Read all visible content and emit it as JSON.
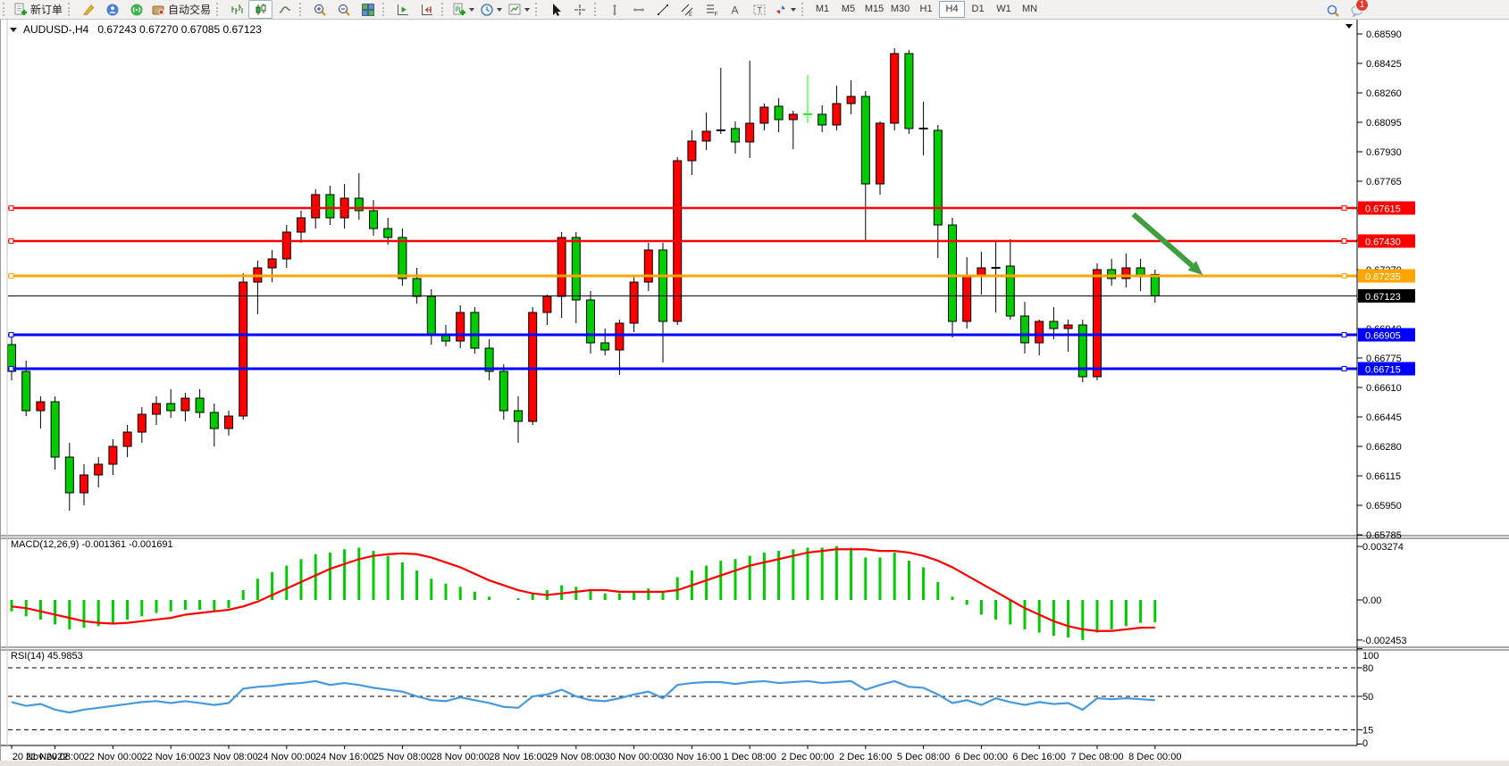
{
  "header": {
    "symbol_title": "AUDUSD-,H4",
    "ohlc": "0.67243 0.67270 0.67085 0.67123"
  },
  "toolbar": {
    "groups": [
      {
        "items": [
          {
            "name": "new-order",
            "icon": "new-order-icon",
            "label": "新订单"
          }
        ]
      },
      {
        "items": [
          {
            "name": "metaeditor",
            "icon": "brush-icon"
          },
          {
            "name": "market",
            "icon": "profile-icon"
          },
          {
            "name": "signals",
            "icon": "signal-icon"
          },
          {
            "name": "auto-trading",
            "icon": "autotrade-icon",
            "label": "自动交易"
          }
        ]
      },
      {
        "items": [
          {
            "name": "bar-chart-mode",
            "icon": "bar-chart-icon"
          },
          {
            "name": "candle-chart-mode",
            "icon": "candle-chart-icon",
            "active": true
          },
          {
            "name": "line-chart-mode",
            "icon": "line-chart-icon"
          }
        ]
      },
      {
        "items": [
          {
            "name": "zoom-in",
            "icon": "zoom-in-icon"
          },
          {
            "name": "zoom-out",
            "icon": "zoom-out-icon"
          },
          {
            "name": "tile-windows",
            "icon": "tile-windows-icon"
          }
        ]
      },
      {
        "items": [
          {
            "name": "auto-scroll",
            "icon": "auto-scroll-icon"
          },
          {
            "name": "chart-shift",
            "icon": "chart-shift-icon"
          }
        ]
      },
      {
        "items": [
          {
            "name": "new-chart",
            "icon": "new-chart-icon",
            "caret": true
          },
          {
            "name": "periods",
            "icon": "clock-icon",
            "caret": true
          },
          {
            "name": "indicators",
            "icon": "template-icon",
            "caret": true
          }
        ]
      },
      {
        "items": [
          {
            "name": "cursor-tool",
            "icon": "cursor-icon"
          },
          {
            "name": "crosshair-tool",
            "icon": "crosshair-icon"
          }
        ]
      },
      {
        "items": [
          {
            "name": "vline-tool",
            "icon": "vline-icon"
          },
          {
            "name": "hline-tool",
            "icon": "hline-icon"
          },
          {
            "name": "trendline-tool",
            "icon": "trendline-icon"
          },
          {
            "name": "channel-tool",
            "icon": "channel-icon"
          },
          {
            "name": "fibo-tool",
            "icon": "fibo-icon"
          },
          {
            "name": "text-tool",
            "icon": "text-icon"
          },
          {
            "name": "label-tool",
            "icon": "label-icon"
          },
          {
            "name": "arrows-tool",
            "icon": "arrows-icon",
            "caret": true
          }
        ]
      }
    ],
    "timeframes": [
      "M1",
      "M5",
      "M15",
      "M30",
      "H1",
      "H4",
      "D1",
      "W1",
      "MN"
    ],
    "active_timeframe": "H4",
    "right": [
      {
        "name": "search",
        "icon": "search-icon"
      },
      {
        "name": "notifications",
        "icon": "chat-icon",
        "badge": "1"
      }
    ]
  },
  "panes": {
    "macd": {
      "label": "MACD(12,26,9)",
      "values": "-0.001361 -0.001691",
      "axis_labels": [
        "0.003274",
        "0.00",
        "-0.002453"
      ]
    },
    "rsi": {
      "label": "RSI(14)",
      "value": "45.9853",
      "axis_labels": [
        "100",
        "80",
        "50",
        "15",
        "0"
      ],
      "dashed_levels": [
        80,
        50,
        15
      ]
    }
  },
  "colors": {
    "candle_up": "#ff0000",
    "candle_down": "#00cc00",
    "doji_lime": "#00ff00",
    "wick": "#000000",
    "macd_hist": "#00cc00",
    "macd_signal": "#ff0000",
    "rsi_line": "#4499e0",
    "line_red": "#ff0000",
    "line_orange": "#ffa500",
    "line_blue": "#0000ff",
    "price_line": "#000000",
    "arrow": "#3f9e3f",
    "axis": "#000000"
  },
  "chart_data": {
    "type": "candlestick-with-indicators",
    "symbol": "AUDUSD-",
    "timeframe": "H4",
    "price_axis_ticks": [
      "0.68590",
      "0.68425",
      "0.68260",
      "0.68095",
      "0.67930",
      "0.67765",
      "0.67600",
      "0.67435",
      "0.67270",
      "0.67105",
      "0.66940",
      "0.66775",
      "0.66610",
      "0.66445",
      "0.66280",
      "0.66115",
      "0.65950",
      "0.65785"
    ],
    "price_axis_top_tick": 0.6859,
    "price_axis_step": 0.00165,
    "main_ylim": [
      0.6578,
      0.6867
    ],
    "hlines": [
      {
        "price": 0.67615,
        "label": "0.67615",
        "color": "line_red"
      },
      {
        "price": 0.6743,
        "label": "0.67430",
        "color": "line_red"
      },
      {
        "price": 0.67235,
        "label": "0.67235",
        "color": "line_orange"
      },
      {
        "price": 0.66905,
        "label": "0.66905",
        "color": "line_blue"
      },
      {
        "price": 0.66715,
        "label": "0.66715",
        "color": "line_blue"
      }
    ],
    "current_price": {
      "price": 0.67123,
      "label": "0.67123"
    },
    "arrow_annotation": {
      "x1_index": 77.5,
      "p1": 0.6758,
      "x2_index": 82.3,
      "p2": 0.6724
    },
    "time_labels": [
      {
        "i": 0,
        "t": "20 Nov 2022"
      },
      {
        "i": 3,
        "t": "21 Nov 08:00"
      },
      {
        "i": 7,
        "t": "22 Nov 00:00"
      },
      {
        "i": 11,
        "t": "22 Nov 16:00"
      },
      {
        "i": 15,
        "t": "23 Nov 08:00"
      },
      {
        "i": 19,
        "t": "24 Nov 00:00"
      },
      {
        "i": 23,
        "t": "24 Nov 16:00"
      },
      {
        "i": 27,
        "t": "25 Nov 08:00"
      },
      {
        "i": 31,
        "t": "28 Nov 00:00"
      },
      {
        "i": 35,
        "t": "28 Nov 16:00"
      },
      {
        "i": 39,
        "t": "29 Nov 08:00"
      },
      {
        "i": 43,
        "t": "30 Nov 00:00"
      },
      {
        "i": 47,
        "t": "30 Nov 16:00"
      },
      {
        "i": 51,
        "t": "1 Dec 08:00"
      },
      {
        "i": 55,
        "t": "2 Dec 00:00"
      },
      {
        "i": 59,
        "t": "2 Dec 16:00"
      },
      {
        "i": 63,
        "t": "5 Dec 08:00"
      },
      {
        "i": 67,
        "t": "6 Dec 00:00"
      },
      {
        "i": 71,
        "t": "6 Dec 16:00"
      },
      {
        "i": 75,
        "t": "7 Dec 08:00"
      },
      {
        "i": 79,
        "t": "8 Dec 00:00"
      }
    ],
    "candles_format": "[open,high,low,close,(doji:'b'=black,'g'=lime)]",
    "candles": [
      [
        0.6685,
        0.669,
        0.6665,
        0.667
      ],
      [
        0.667,
        0.6676,
        0.6645,
        0.6648
      ],
      [
        0.6648,
        0.6656,
        0.6638,
        0.6653
      ],
      [
        0.6653,
        0.6656,
        0.6615,
        0.6622
      ],
      [
        0.6622,
        0.663,
        0.6592,
        0.6602
      ],
      [
        0.6602,
        0.6618,
        0.6595,
        0.6612
      ],
      [
        0.6612,
        0.6622,
        0.6605,
        0.6618
      ],
      [
        0.6618,
        0.6632,
        0.6612,
        0.6628
      ],
      [
        0.6628,
        0.664,
        0.6622,
        0.6636
      ],
      [
        0.6636,
        0.665,
        0.663,
        0.6646
      ],
      [
        0.6646,
        0.6656,
        0.664,
        0.6652
      ],
      [
        0.6652,
        0.666,
        0.6644,
        0.6648
      ],
      [
        0.6648,
        0.6658,
        0.6642,
        0.6655
      ],
      [
        0.6655,
        0.666,
        0.6644,
        0.6647
      ],
      [
        0.6647,
        0.6652,
        0.6628,
        0.6638
      ],
      [
        0.6638,
        0.6648,
        0.6634,
        0.6645
      ],
      [
        0.6645,
        0.6725,
        0.6643,
        0.672
      ],
      [
        0.672,
        0.6732,
        0.6702,
        0.6728
      ],
      [
        0.6728,
        0.6738,
        0.672,
        0.6733
      ],
      [
        0.6733,
        0.6752,
        0.6728,
        0.6748
      ],
      [
        0.6748,
        0.676,
        0.6742,
        0.6756
      ],
      [
        0.6756,
        0.6772,
        0.675,
        0.6769
      ],
      [
        0.6769,
        0.6774,
        0.6752,
        0.6756
      ],
      [
        0.6756,
        0.6775,
        0.675,
        0.6767
      ],
      [
        0.6767,
        0.6781,
        0.6755,
        0.676
      ],
      [
        0.676,
        0.6766,
        0.6746,
        0.675
      ],
      [
        0.675,
        0.6756,
        0.6741,
        0.6745
      ],
      [
        0.6745,
        0.675,
        0.6718,
        0.6722
      ],
      [
        0.6722,
        0.6728,
        0.6708,
        0.6712
      ],
      [
        0.6712,
        0.6716,
        0.6685,
        0.669
      ],
      [
        0.669,
        0.6696,
        0.6684,
        0.6687
      ],
      [
        0.6687,
        0.6707,
        0.6683,
        0.6703
      ],
      [
        0.6703,
        0.6706,
        0.668,
        0.6683
      ],
      [
        0.6683,
        0.6688,
        0.6665,
        0.667
      ],
      [
        0.667,
        0.6674,
        0.6643,
        0.6648
      ],
      [
        0.6648,
        0.6656,
        0.663,
        0.6642
      ],
      [
        0.6642,
        0.6706,
        0.664,
        0.6703
      ],
      [
        0.6703,
        0.6713,
        0.6696,
        0.6712
      ],
      [
        0.6712,
        0.6748,
        0.67,
        0.6745
      ],
      [
        0.6745,
        0.6748,
        0.6697,
        0.671
      ],
      [
        0.671,
        0.6715,
        0.668,
        0.6686
      ],
      [
        0.6686,
        0.6694,
        0.6679,
        0.6682
      ],
      [
        0.6682,
        0.6699,
        0.6668,
        0.6697
      ],
      [
        0.6697,
        0.67235,
        0.6692,
        0.672
      ],
      [
        0.672,
        0.6742,
        0.6715,
        0.6738
      ],
      [
        0.6738,
        0.6742,
        0.6675,
        0.6698
      ],
      [
        0.6698,
        0.679,
        0.6696,
        0.6788
      ],
      [
        0.6788,
        0.6805,
        0.678,
        0.6799
      ],
      [
        0.6799,
        0.6815,
        0.6794,
        0.68045
      ],
      [
        0.6805,
        0.684,
        0.6803,
        0.6806,
        "b"
      ],
      [
        0.6806,
        0.681,
        0.6792,
        0.67985
      ],
      [
        0.67985,
        0.6844,
        0.67895,
        0.6809
      ],
      [
        0.6809,
        0.682,
        0.6805,
        0.6818
      ],
      [
        0.68185,
        0.6823,
        0.6804,
        0.6811
      ],
      [
        0.6811,
        0.6816,
        0.67945,
        0.6814
      ],
      [
        0.6814,
        0.6836,
        0.6809,
        0.6814,
        "g"
      ],
      [
        0.6814,
        0.6819,
        0.6804,
        0.6808
      ],
      [
        0.6808,
        0.683,
        0.6805,
        0.682
      ],
      [
        0.682,
        0.6833,
        0.6814,
        0.6824
      ],
      [
        0.6824,
        0.6827,
        0.6743,
        0.6775
      ],
      [
        0.6775,
        0.681,
        0.6769,
        0.6809
      ],
      [
        0.6809,
        0.6851,
        0.6805,
        0.6848
      ],
      [
        0.6848,
        0.685,
        0.6803,
        0.6806
      ],
      [
        0.6806,
        0.6821,
        0.6791,
        0.6805,
        "b"
      ],
      [
        0.6805,
        0.6808,
        0.67335,
        0.6752
      ],
      [
        0.6752,
        0.6756,
        0.6689,
        0.6698
      ],
      [
        0.6698,
        0.6734,
        0.6694,
        0.6723
      ],
      [
        0.6723,
        0.6737,
        0.6713,
        0.6728
      ],
      [
        0.6728,
        0.6743,
        0.6703,
        0.6729,
        "b"
      ],
      [
        0.6729,
        0.6744,
        0.6699,
        0.6701
      ],
      [
        0.6701,
        0.6709,
        0.668,
        0.6686
      ],
      [
        0.6686,
        0.6699,
        0.6679,
        0.6698
      ],
      [
        0.6698,
        0.6706,
        0.6688,
        0.6694
      ],
      [
        0.6694,
        0.6699,
        0.6681,
        0.6696
      ],
      [
        0.6696,
        0.6699,
        0.6664,
        0.6667
      ],
      [
        0.6667,
        0.67305,
        0.6665,
        0.6727
      ],
      [
        0.6727,
        0.6733,
        0.6718,
        0.6722
      ],
      [
        0.6722,
        0.6736,
        0.6717,
        0.6728
      ],
      [
        0.6728,
        0.6733,
        0.6715,
        0.6724
      ],
      [
        0.67243,
        0.6727,
        0.67085,
        0.67123
      ]
    ],
    "macd": {
      "ylim": [
        -0.00295,
        0.00385
      ],
      "ticks": [
        {
          "v": 0.003274,
          "t": "0.003274"
        },
        {
          "v": 0,
          "t": "0.00"
        },
        {
          "v": -0.002453,
          "t": "-0.002453"
        }
      ],
      "histogram": [
        -0.0007,
        -0.001,
        -0.0012,
        -0.0015,
        -0.0018,
        -0.0017,
        -0.0016,
        -0.0014,
        -0.0012,
        -0.001,
        -0.0008,
        -0.0007,
        -0.0006,
        -0.0006,
        -0.0007,
        -0.0005,
        0.0006,
        0.0013,
        0.0017,
        0.0021,
        0.0025,
        0.0028,
        0.0029,
        0.0031,
        0.0032,
        0.003,
        0.0027,
        0.0023,
        0.0018,
        0.0013,
        0.001,
        0.0008,
        0.0005,
        0.0002,
        0.0,
        0.0001,
        0.0004,
        0.0006,
        0.0009,
        0.0008,
        0.0006,
        0.0004,
        0.0004,
        0.0005,
        0.0007,
        0.0005,
        0.0014,
        0.0018,
        0.0021,
        0.0024,
        0.0025,
        0.0027,
        0.0029,
        0.003,
        0.0031,
        0.0032,
        0.0032,
        0.0033,
        0.0032,
        0.0026,
        0.0026,
        0.0029,
        0.0024,
        0.002,
        0.0011,
        0.0002,
        -0.0003,
        -0.0009,
        -0.0012,
        -0.0015,
        -0.0018,
        -0.002,
        -0.0022,
        -0.0023,
        -0.00245,
        -0.002,
        -0.0018,
        -0.0016,
        -0.0014,
        -0.001361
      ],
      "signal": [
        -0.0004,
        -0.0005,
        -0.0007,
        -0.0009,
        -0.0011,
        -0.0013,
        -0.0014,
        -0.00145,
        -0.0014,
        -0.0013,
        -0.0012,
        -0.0011,
        -0.0009,
        -0.0008,
        -0.0007,
        -0.0006,
        -0.0004,
        -0.0001,
        0.0003,
        0.0007,
        0.0011,
        0.0015,
        0.0019,
        0.0022,
        0.0025,
        0.0027,
        0.0028,
        0.00285,
        0.0028,
        0.0026,
        0.0023,
        0.002,
        0.0016,
        0.0012,
        0.0009,
        0.0006,
        0.0004,
        0.0003,
        0.0004,
        0.0005,
        0.0006,
        0.0006,
        0.0005,
        0.0005,
        0.0005,
        0.0005,
        0.0006,
        0.0009,
        0.0012,
        0.0015,
        0.0018,
        0.0021,
        0.0023,
        0.0025,
        0.0027,
        0.0029,
        0.003,
        0.0031,
        0.0031,
        0.0031,
        0.003,
        0.003,
        0.0029,
        0.0027,
        0.0024,
        0.002,
        0.0015,
        0.001,
        0.0005,
        0.0,
        -0.0005,
        -0.0009,
        -0.0013,
        -0.0016,
        -0.0018,
        -0.0019,
        -0.0019,
        -0.0018,
        -0.0017,
        -0.001691
      ]
    },
    "rsi": {
      "ylim": [
        0,
        100
      ],
      "values": [
        44,
        40,
        42,
        36,
        33,
        36,
        38,
        40,
        42,
        44,
        45,
        43,
        45,
        43,
        41,
        43,
        58,
        60,
        61,
        63,
        64,
        66,
        62,
        64,
        62,
        59,
        57,
        55,
        50,
        46,
        45,
        49,
        46,
        43,
        39,
        38,
        50,
        52,
        57,
        50,
        46,
        45,
        48,
        52,
        55,
        48,
        62,
        64,
        65,
        65,
        63,
        65,
        66,
        64,
        65,
        66,
        64,
        65,
        66,
        57,
        62,
        66,
        60,
        59,
        52,
        43,
        46,
        41,
        48,
        44,
        41,
        44,
        42,
        43,
        36,
        48,
        47,
        48,
        47,
        46
      ]
    }
  }
}
